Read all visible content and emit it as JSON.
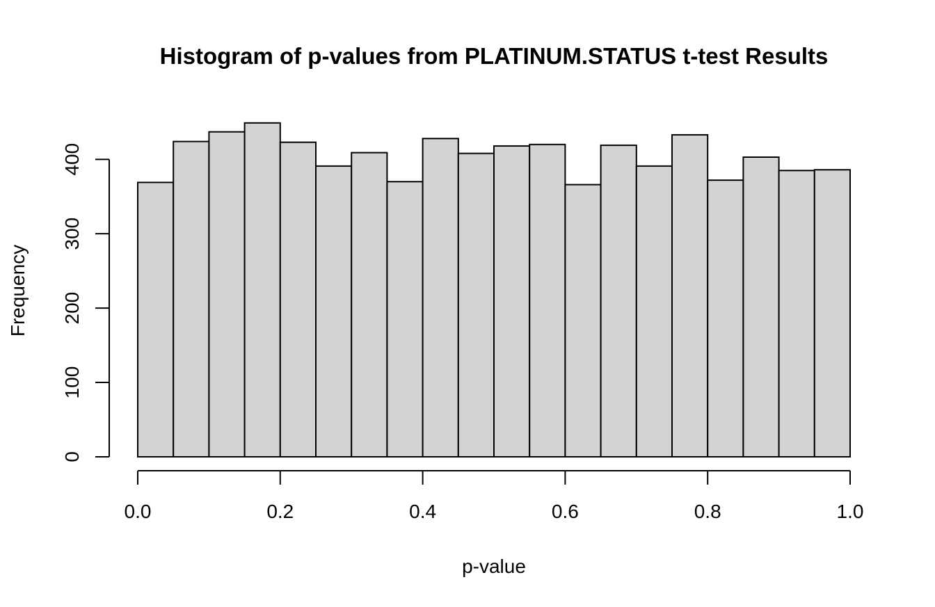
{
  "chart_data": {
    "type": "bar",
    "title": "Histogram of p-values from PLATINUM.STATUS t-test Results",
    "xlabel": "p-value",
    "ylabel": "Frequency",
    "bin_edges": [
      0.0,
      0.05,
      0.1,
      0.15,
      0.2,
      0.25,
      0.3,
      0.35,
      0.4,
      0.45,
      0.5,
      0.55,
      0.6,
      0.65,
      0.7,
      0.75,
      0.8,
      0.85,
      0.9,
      0.95,
      1.0
    ],
    "values": [
      369,
      424,
      437,
      449,
      423,
      391,
      409,
      370,
      428,
      408,
      418,
      420,
      366,
      419,
      391,
      433,
      372,
      403,
      385,
      386
    ],
    "xlim": [
      0,
      1
    ],
    "ylim": [
      0,
      449
    ],
    "x_ticks": [
      0.0,
      0.2,
      0.4,
      0.6,
      0.8,
      1.0
    ],
    "x_tick_labels": [
      "0.0",
      "0.2",
      "0.4",
      "0.6",
      "0.8",
      "1.0"
    ],
    "y_ticks": [
      0,
      100,
      200,
      300,
      400
    ],
    "y_tick_labels": [
      "0",
      "100",
      "200",
      "300",
      "400"
    ],
    "grid": false,
    "bar_fill": "#d3d3d3",
    "bar_stroke": "#000000"
  }
}
